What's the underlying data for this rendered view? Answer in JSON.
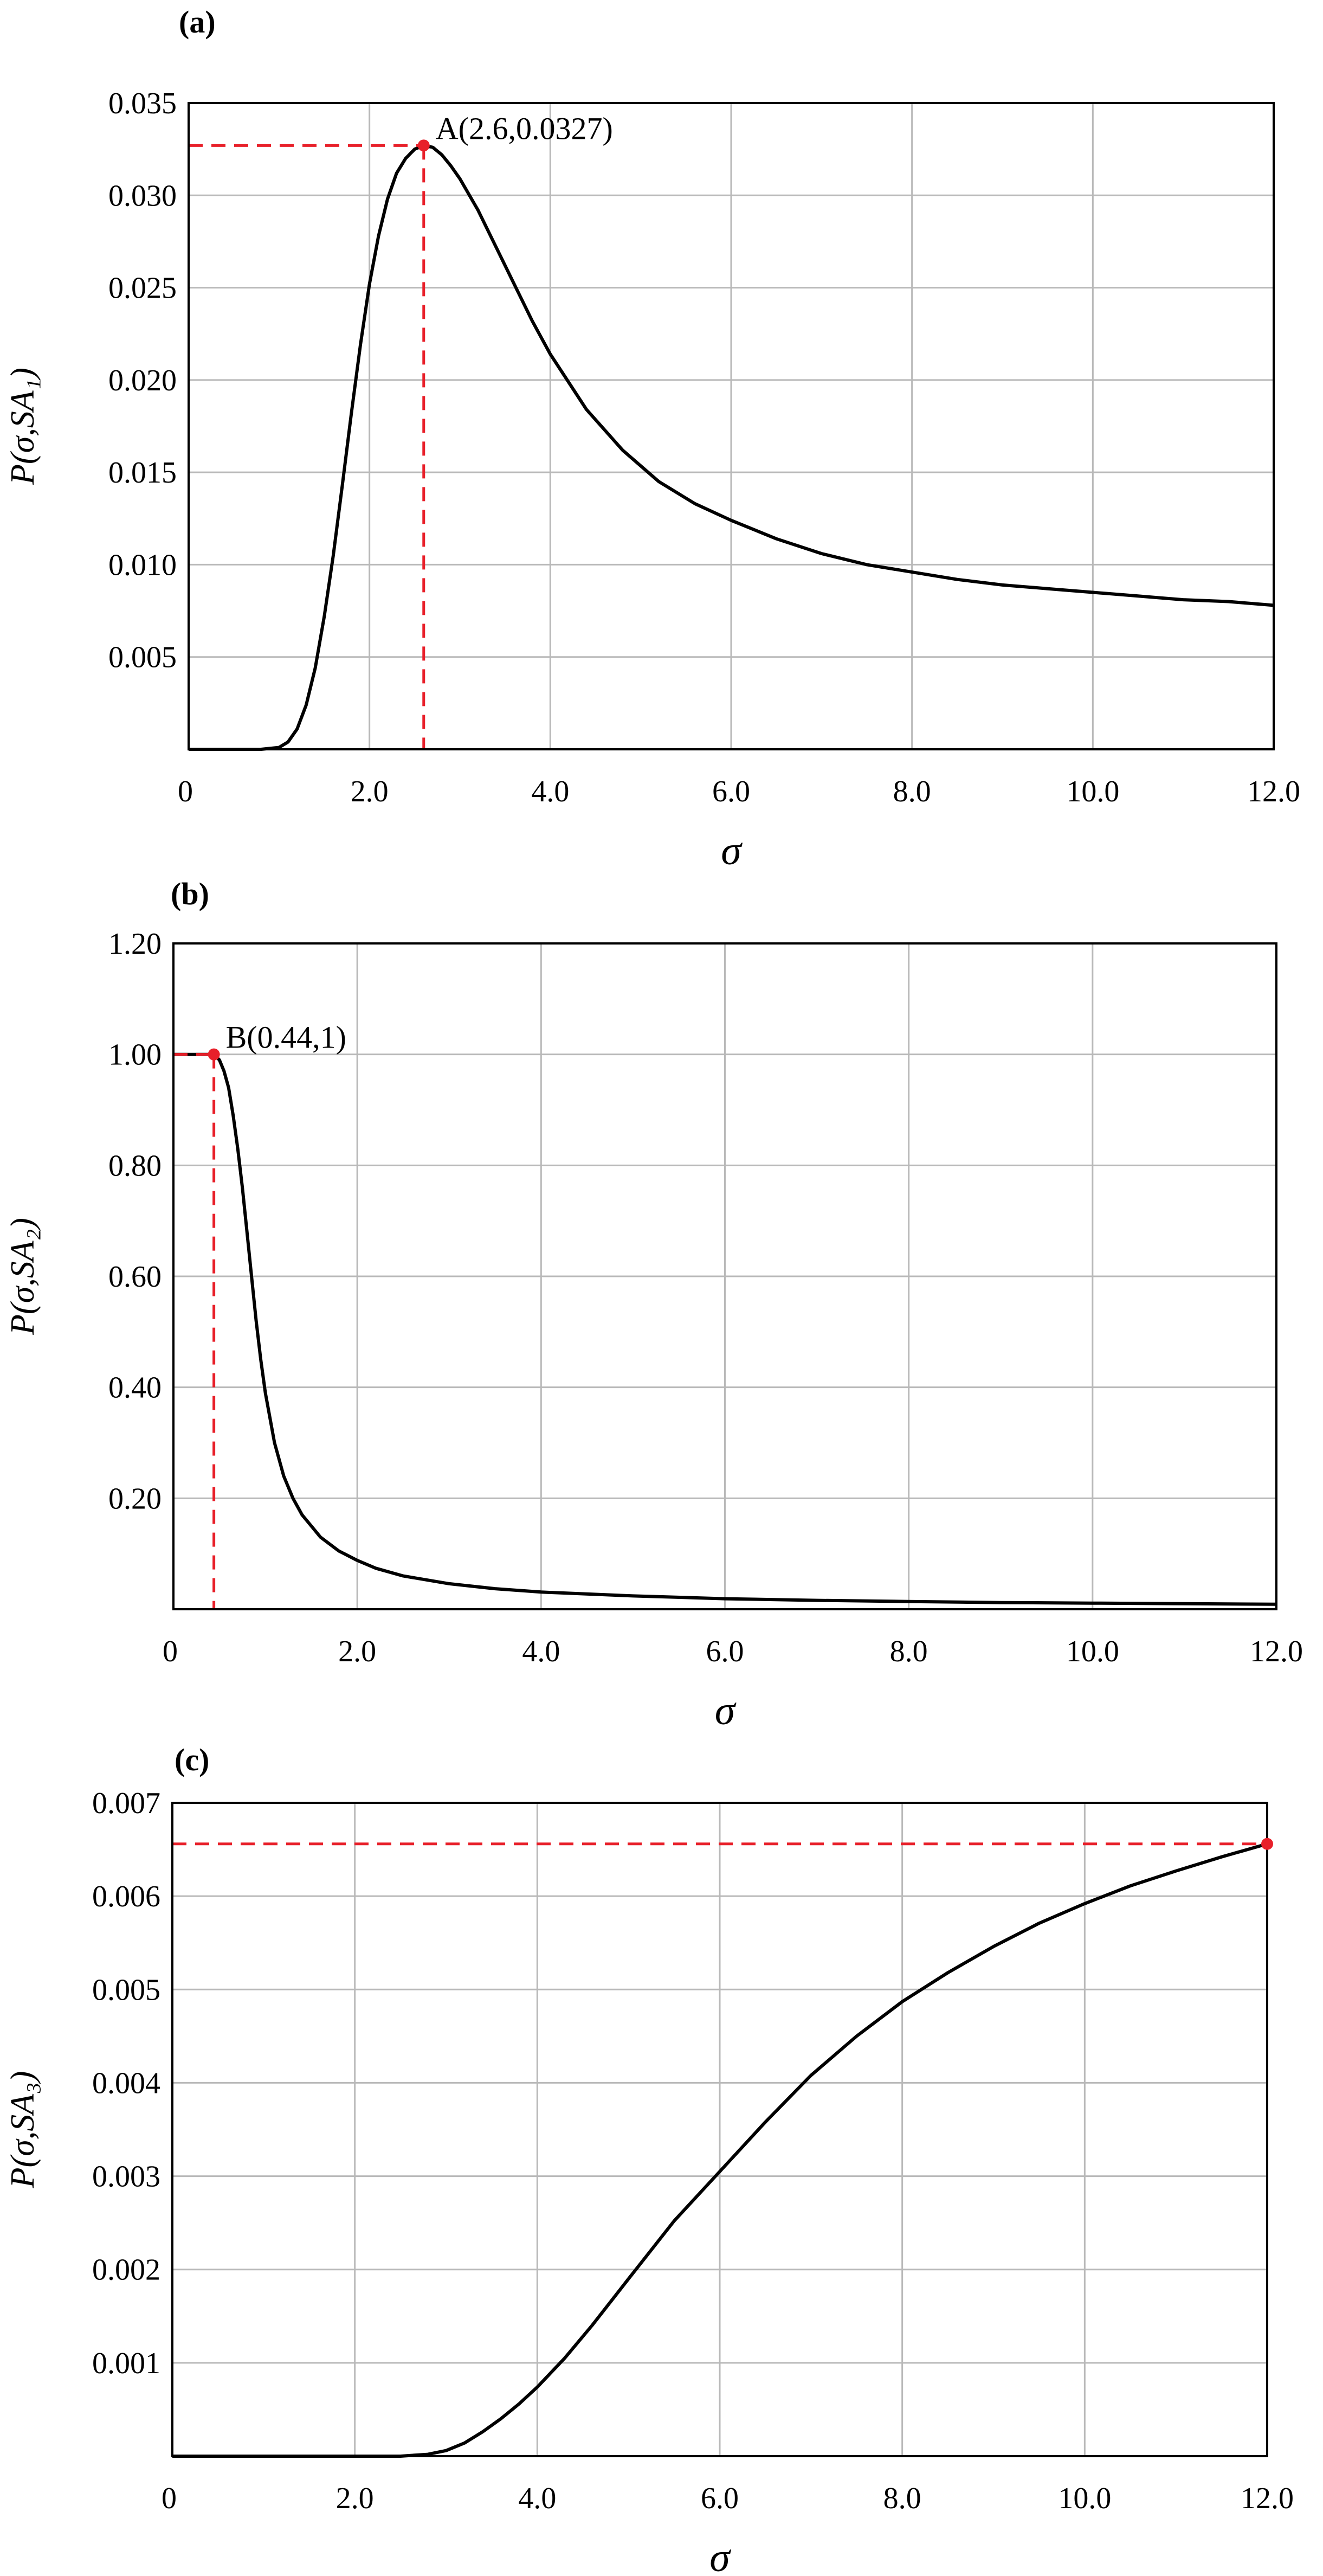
{
  "chart_data": [
    {
      "type": "line",
      "panel": "(a)",
      "xlabel": "σ",
      "ylabel": "P(σ,SA₁)",
      "xlim": [
        0,
        12
      ],
      "ylim": [
        0,
        0.035
      ],
      "x_ticks": [
        "0",
        "2.0",
        "4.0",
        "6.0",
        "8.0",
        "10.0",
        "12.0"
      ],
      "x_tick_values": [
        0,
        2,
        4,
        6,
        8,
        10,
        12
      ],
      "y_ticks": [
        "0.005",
        "0.010",
        "0.015",
        "0.020",
        "0.025",
        "0.030",
        "0.035"
      ],
      "y_tick_values": [
        0.005,
        0.01,
        0.015,
        0.02,
        0.025,
        0.03,
        0.035
      ],
      "grid": true,
      "series": [
        {
          "color": "#000000",
          "x": [
            0,
            0.8,
            1.0,
            1.1,
            1.2,
            1.3,
            1.4,
            1.5,
            1.6,
            1.7,
            1.8,
            1.9,
            2.0,
            2.1,
            2.2,
            2.3,
            2.4,
            2.5,
            2.6,
            2.7,
            2.8,
            2.9,
            3.0,
            3.2,
            3.4,
            3.6,
            3.8,
            4.0,
            4.4,
            4.8,
            5.2,
            5.6,
            6.0,
            6.5,
            7.0,
            7.5,
            8.0,
            8.5,
            9.0,
            9.5,
            10.0,
            10.5,
            11.0,
            11.5,
            12.0
          ],
          "y": [
            0,
            0,
            0.0001,
            0.0004,
            0.0011,
            0.0024,
            0.0044,
            0.0072,
            0.0105,
            0.0143,
            0.0182,
            0.0219,
            0.0252,
            0.0278,
            0.0298,
            0.0312,
            0.032,
            0.0325,
            0.0327,
            0.0326,
            0.0322,
            0.0316,
            0.0309,
            0.0292,
            0.0272,
            0.0252,
            0.0232,
            0.0214,
            0.0184,
            0.0162,
            0.0145,
            0.0133,
            0.0124,
            0.0114,
            0.0106,
            0.01,
            0.0096,
            0.0092,
            0.0089,
            0.0087,
            0.0085,
            0.0083,
            0.0081,
            0.008,
            0.0078
          ]
        }
      ],
      "marker": {
        "x": 2.6,
        "y": 0.0327,
        "label": "A(2.6,0.0327)",
        "color": "#e8202a"
      }
    },
    {
      "type": "line",
      "panel": "(b)",
      "xlabel": "σ",
      "ylabel": "P(σ,SA₂)",
      "xlim": [
        0,
        12
      ],
      "ylim": [
        0,
        1.2
      ],
      "x_ticks": [
        "0",
        "2.0",
        "4.0",
        "6.0",
        "8.0",
        "10.0",
        "12.0"
      ],
      "x_tick_values": [
        0,
        2,
        4,
        6,
        8,
        10,
        12
      ],
      "y_ticks": [
        "0.20",
        "0.40",
        "0.60",
        "0.80",
        "1.00",
        "1.20"
      ],
      "y_tick_values": [
        0.2,
        0.4,
        0.6,
        0.8,
        1.0,
        1.2
      ],
      "grid": true,
      "series": [
        {
          "color": "#000000",
          "x": [
            0,
            0.2,
            0.4,
            0.44,
            0.5,
            0.55,
            0.6,
            0.65,
            0.7,
            0.75,
            0.8,
            0.85,
            0.9,
            0.95,
            1.0,
            1.1,
            1.2,
            1.3,
            1.4,
            1.5,
            1.6,
            1.8,
            2.0,
            2.2,
            2.5,
            3.0,
            3.5,
            4.0,
            5.0,
            6.0,
            7.0,
            8.0,
            9.0,
            10.0,
            11.0,
            12.0
          ],
          "y": [
            1.0,
            1.0,
            1.0,
            1.0,
            0.99,
            0.97,
            0.94,
            0.89,
            0.83,
            0.76,
            0.68,
            0.6,
            0.52,
            0.45,
            0.39,
            0.3,
            0.24,
            0.2,
            0.17,
            0.15,
            0.13,
            0.105,
            0.088,
            0.074,
            0.06,
            0.046,
            0.037,
            0.031,
            0.024,
            0.019,
            0.016,
            0.014,
            0.012,
            0.011,
            0.01,
            0.009
          ]
        }
      ],
      "marker": {
        "x": 0.44,
        "y": 1.0,
        "label": "B(0.44,1)",
        "color": "#e8202a"
      }
    },
    {
      "type": "line",
      "panel": "(c)",
      "xlabel": "σ",
      "ylabel": "P(σ,SA₃)",
      "xlim": [
        0,
        12
      ],
      "ylim": [
        0,
        0.007
      ],
      "x_ticks": [
        "0",
        "2.0",
        "4.0",
        "6.0",
        "8.0",
        "10.0",
        "12.0"
      ],
      "x_tick_values": [
        0,
        2,
        4,
        6,
        8,
        10,
        12
      ],
      "y_ticks": [
        "0.001",
        "0.002",
        "0.003",
        "0.004",
        "0.005",
        "0.006",
        "0.007"
      ],
      "y_tick_values": [
        0.001,
        0.002,
        0.003,
        0.004,
        0.005,
        0.006,
        0.007
      ],
      "grid": true,
      "series": [
        {
          "color": "#000000",
          "x": [
            0,
            2.0,
            2.5,
            2.8,
            3.0,
            3.2,
            3.4,
            3.6,
            3.8,
            4.0,
            4.3,
            4.6,
            5.0,
            5.5,
            6.0,
            6.5,
            7.0,
            7.5,
            8.0,
            8.5,
            9.0,
            9.5,
            10.0,
            10.5,
            11.0,
            11.5,
            12.0
          ],
          "y": [
            0,
            0,
            0.0,
            2e-05,
            6e-05,
            0.00014,
            0.00026,
            0.0004,
            0.00056,
            0.00074,
            0.00105,
            0.0014,
            0.0019,
            0.00252,
            0.00305,
            0.00358,
            0.00408,
            0.0045,
            0.00487,
            0.00518,
            0.00546,
            0.00571,
            0.00592,
            0.00611,
            0.00627,
            0.00642,
            0.00656
          ]
        }
      ],
      "marker": {
        "x": 12.0,
        "y": 0.00656,
        "label": "",
        "color": "#e8202a"
      }
    }
  ]
}
